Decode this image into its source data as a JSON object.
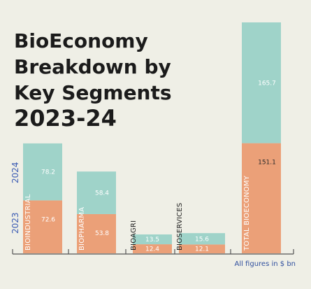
{
  "title_lines": [
    "BioEconomy",
    "Breakdown by",
    "Key Segments",
    "2023-24"
  ],
  "footnote": "All figures in $ bn",
  "colors": {
    "background": "#efefe6",
    "series_2023": "#eba078",
    "series_2024": "#9fd3c9",
    "axis": "#555555",
    "year_label": "#3b5bb3"
  },
  "chart_data": {
    "type": "bar",
    "stacked": true,
    "categories": [
      "BIOINDUSTRIAL",
      "BIOPHARMA",
      "BIOAGRI",
      "BIOSERVICES",
      "TOTAL BIOECONOMY"
    ],
    "series": [
      {
        "name": "2023",
        "values": [
          72.6,
          53.8,
          12.4,
          12.1,
          151.1
        ]
      },
      {
        "name": "2024",
        "values": [
          78.2,
          58.4,
          13.5,
          15.6,
          165.7
        ]
      }
    ],
    "value_labels": {
      "2023": [
        "72.6",
        "53.8",
        "12.4",
        "12.1",
        "151.1"
      ],
      "2024": [
        "78.2",
        "58.4",
        "13.5",
        "15.6",
        "165.7"
      ]
    },
    "grid": false,
    "legend": "left-vertical"
  }
}
